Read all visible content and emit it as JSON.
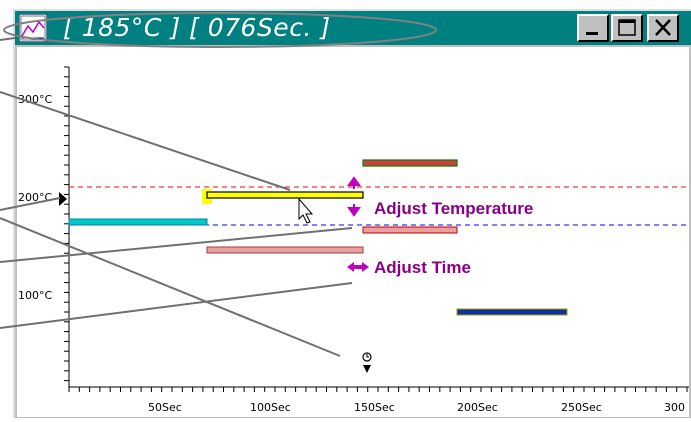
{
  "window": {
    "title": "[ 185°C ] [ 076Sec. ]",
    "minimize_icon": "minimize-icon",
    "maximize_icon": "maximize-icon",
    "close_icon": "close-icon",
    "app_icon": "chart-app-icon"
  },
  "chart_data": {
    "type": "timeline",
    "y_ticks": [
      "300°C",
      "200°C",
      "100°C"
    ],
    "x_ticks": [
      "50Sec",
      "100Sec",
      "150Sec",
      "200Sec",
      "250Sec",
      "300"
    ],
    "segments": [
      {
        "color": "#00c8c8",
        "start": 0,
        "end": 68,
        "temp": 160
      },
      {
        "color": "#ffff00",
        "start": 68,
        "end": 144,
        "temp": 185,
        "selected": true
      },
      {
        "color": "#e8a0a0",
        "start": 68,
        "end": 144,
        "temp": 134
      },
      {
        "color": "#e8a0a0",
        "start": 144,
        "end": 190,
        "temp": 155
      },
      {
        "color": "#d04040",
        "start": 144,
        "end": 190,
        "temp": 227
      },
      {
        "color": "#1030a0",
        "start": 190,
        "end": 244,
        "temp": 75
      }
    ],
    "reference_lines": [
      {
        "temp": 185,
        "color": "#ff0000",
        "style": "dashed"
      },
      {
        "temp": 158,
        "color": "#0000ff",
        "style": "dashed"
      }
    ],
    "annotations": {
      "adjust_temperature": "Adjust Temperature",
      "adjust_time": "Adjust Time"
    }
  }
}
